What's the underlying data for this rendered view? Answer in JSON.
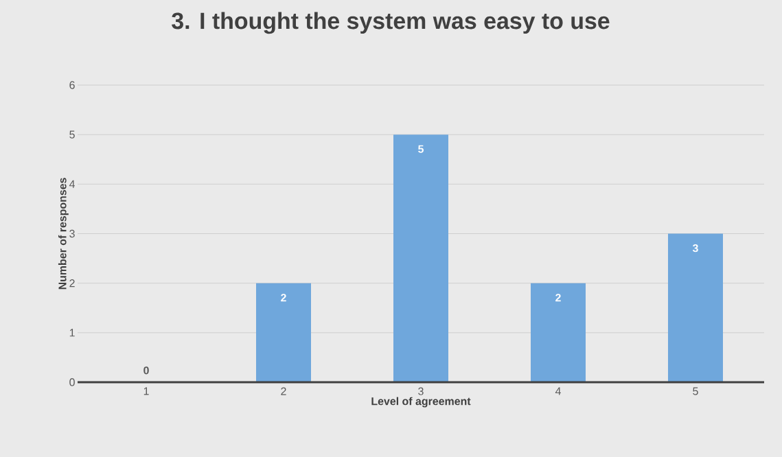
{
  "chart_data": {
    "type": "bar",
    "title": "3. I thought the system was easy to use",
    "xlabel": "Level of agreement",
    "ylabel": "Number of responses",
    "categories": [
      "1",
      "2",
      "3",
      "4",
      "5"
    ],
    "values": [
      0,
      2,
      5,
      2,
      3
    ],
    "color": "#6fa7dc",
    "ylim": [
      0,
      6
    ],
    "yticks": [
      0,
      1,
      2,
      3,
      4,
      5,
      6
    ],
    "grid": "y",
    "data_labels": true
  }
}
